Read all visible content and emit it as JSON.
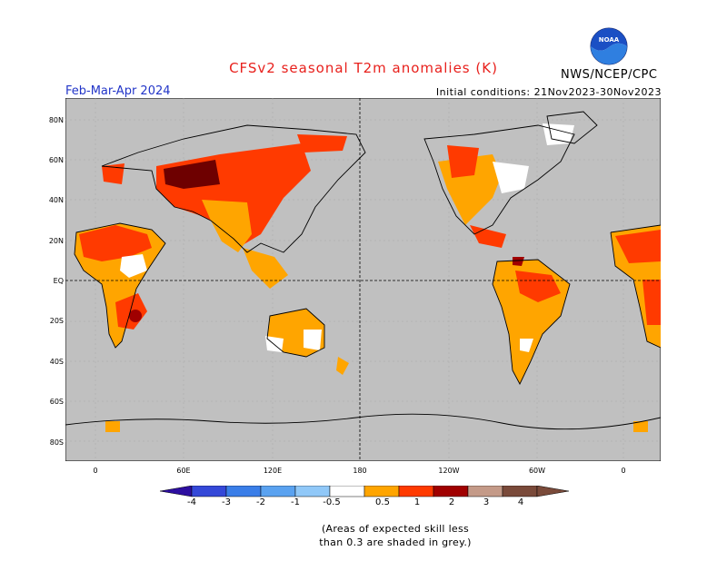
{
  "header": {
    "title": "CFSv2 seasonal T2m anomalies (K)",
    "period": "Feb-Mar-Apr 2024",
    "initial_conditions": "Initial conditions: 21Nov2023-30Nov2023",
    "organization": "NWS/NCEP/CPC",
    "logo_text": "NOAA"
  },
  "map": {
    "lat_labels": [
      "80N",
      "60N",
      "40N",
      "20N",
      "EQ",
      "20S",
      "40S",
      "60S",
      "80S"
    ],
    "lon_labels": [
      "0",
      "60E",
      "120E",
      "180",
      "120W",
      "60W",
      "0"
    ],
    "colors": {
      "ocean_grey": "#c0c0c0",
      "warm_light": "#ffa500",
      "warm_mid": "#ff3a00",
      "warm_strong": "#a00000",
      "warm_extreme": "#6e0000",
      "neutral_white": "#ffffff"
    }
  },
  "colorbar": {
    "tick_labels": [
      "-4",
      "-3",
      "-2",
      "-1",
      "-0.5",
      "0.5",
      "1",
      "2",
      "3",
      "4"
    ],
    "colors": [
      "#2d0ea0",
      "#3448d8",
      "#3a7ee8",
      "#5aa2f0",
      "#90c8f8",
      "#ffffff",
      "#ffa500",
      "#ff3a00",
      "#a00000",
      "#c49a88",
      "#7a4a3a"
    ]
  },
  "footnote": {
    "line1": "(Areas of expected skill less",
    "line2": "than 0.3 are shaded in grey.)"
  }
}
